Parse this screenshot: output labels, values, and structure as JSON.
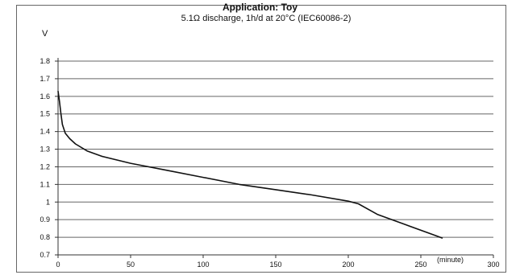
{
  "chart_data": {
    "type": "line",
    "title": "Application: Toy",
    "subtitle": "5.1Ω discharge, 1h/d at 20°C (IEC60086-2)",
    "ylabel": "V",
    "xunit_label": "(minute)",
    "xlim": [
      0,
      300
    ],
    "ylim": [
      0.7,
      1.8
    ],
    "x_ticks": [
      0,
      50,
      100,
      150,
      200,
      250,
      300
    ],
    "x_tick_labels": [
      "0",
      "50",
      "100",
      "150",
      "200",
      "250",
      "300"
    ],
    "y_ticks": [
      1.8,
      1.7,
      1.6,
      1.5,
      1.4,
      1.3,
      1.2,
      1.1,
      1,
      0.9,
      0.8,
      0.7
    ],
    "y_tick_labels": [
      "1.8",
      "1.7",
      "1.6",
      "1.5",
      "1.4",
      "1.3",
      "1.2",
      "1.1",
      "1",
      "0.9",
      "0.8",
      "0.7"
    ],
    "grid": "horizontal",
    "series": [
      {
        "x": [
          0,
          1,
          2,
          3,
          5,
          8,
          12,
          20,
          30,
          50,
          75,
          100,
          125,
          150,
          175,
          200,
          207,
          220,
          240,
          260,
          265
        ],
        "y": [
          1.63,
          1.57,
          1.5,
          1.44,
          1.39,
          1.36,
          1.33,
          1.29,
          1.26,
          1.22,
          1.18,
          1.14,
          1.1,
          1.07,
          1.04,
          1.005,
          0.99,
          0.93,
          0.87,
          0.81,
          0.795
        ]
      }
    ],
    "colors": {
      "line": "#111111",
      "grid": "#666666"
    }
  }
}
